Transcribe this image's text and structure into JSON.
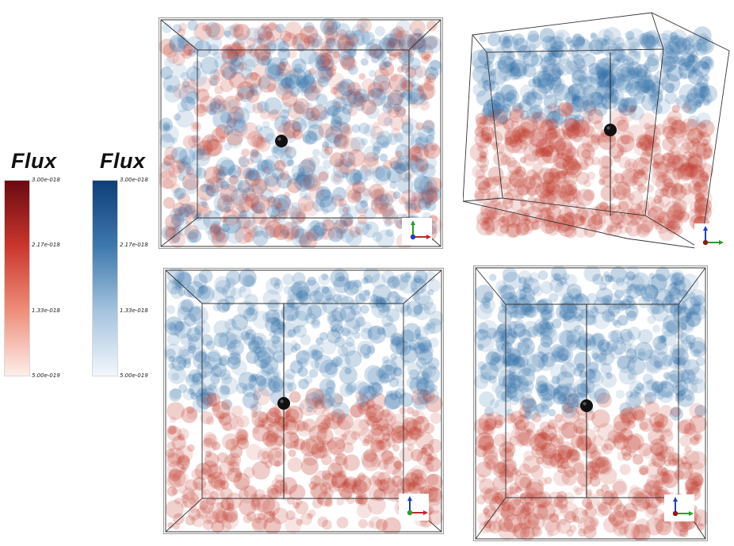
{
  "legends": [
    {
      "title": "Flux",
      "colors": [
        "#6a0a10",
        "#c9362c",
        "#ef8e7a",
        "#fdeee9"
      ],
      "ticks": [
        "3.00e-018",
        "2.17e-018",
        "1.33e-018",
        "5.00e-019"
      ]
    },
    {
      "title": "Flux",
      "colors": [
        "#0e3f78",
        "#3d78ad",
        "#a4c3de",
        "#f2f7fc"
      ],
      "ticks": [
        "3.00e-018",
        "2.17e-018",
        "1.33e-018",
        "5.00e-019"
      ]
    }
  ],
  "views": [
    {
      "name": "front-view-mixed",
      "pattern": "mixed",
      "axes": {
        "up": "y",
        "right": "x"
      }
    },
    {
      "name": "perspective-view",
      "pattern": "split",
      "axes": {
        "up": "z",
        "right": "y"
      }
    },
    {
      "name": "side-view-1",
      "pattern": "split",
      "axes": {
        "up": "z",
        "right": "x"
      }
    },
    {
      "name": "side-view-2",
      "pattern": "split",
      "axes": {
        "up": "z",
        "right": "y"
      }
    }
  ],
  "colors": {
    "blue": "#2f6ea8",
    "red": "#c0392b",
    "source_sphere": "#111111",
    "frame": "#333333"
  }
}
